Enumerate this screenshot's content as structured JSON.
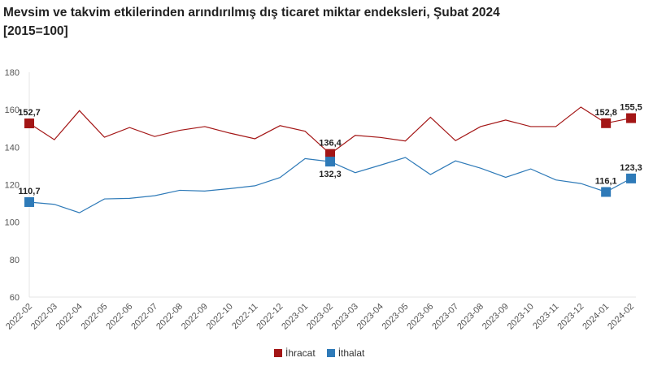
{
  "chart_data": {
    "type": "line",
    "title": "Mevsim ve takvim etkilerinden arındırılmış dış ticaret miktar endeksleri, Şubat 2024",
    "subtitle": "[2015=100]",
    "xlabel": "",
    "ylabel": "",
    "ylim": [
      60,
      180
    ],
    "yticks": [
      60,
      80,
      100,
      120,
      140,
      160,
      180
    ],
    "grid": false,
    "legend": "bottom",
    "categories": [
      "2022-02",
      "2022-03",
      "2022-04",
      "2022-05",
      "2022-06",
      "2022-07",
      "2022-08",
      "2022-09",
      "2022-10",
      "2022-11",
      "2022-12",
      "2023-01",
      "2023-02",
      "2023-03",
      "2023-04",
      "2023-05",
      "2023-06",
      "2023-07",
      "2023-08",
      "2023-09",
      "2023-10",
      "2023-11",
      "2023-12",
      "2024-01",
      "2024-02"
    ],
    "series": [
      {
        "name": "İhracat",
        "color": "#a31515",
        "values": [
          152.7,
          144.0,
          159.5,
          145.3,
          150.5,
          145.7,
          149.0,
          151.0,
          147.5,
          144.5,
          151.5,
          148.5,
          136.4,
          146.3,
          145.2,
          143.3,
          156.0,
          143.5,
          151.0,
          154.5,
          151.0,
          151.0,
          161.4,
          152.8,
          155.5
        ],
        "labeled": {
          "0": "152,7",
          "12": "136,4",
          "23": "152,8",
          "24": "155,5"
        }
      },
      {
        "name": "İthalat",
        "color": "#2e7ab8",
        "values": [
          110.7,
          109.5,
          105.0,
          112.4,
          112.7,
          114.1,
          117.0,
          116.6,
          117.9,
          119.4,
          123.8,
          133.9,
          132.3,
          126.4,
          130.4,
          134.5,
          125.4,
          132.7,
          128.8,
          123.9,
          128.4,
          122.5,
          120.6,
          116.1,
          123.3
        ],
        "labeled": {
          "0": "110,7",
          "12": "132,3",
          "23": "116,1",
          "24": "123,3"
        }
      }
    ]
  }
}
